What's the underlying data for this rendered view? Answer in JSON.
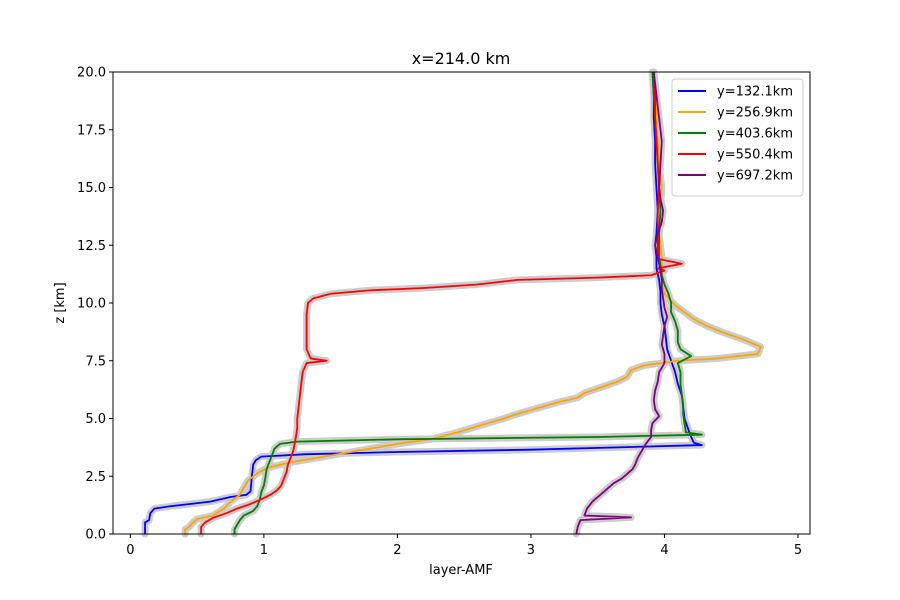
{
  "chart_data": {
    "type": "line",
    "title": "x=214.0 km",
    "xlabel": "layer-AMF",
    "ylabel": "z [km]",
    "xlim": [
      -0.13,
      5.09
    ],
    "ylim": [
      0,
      20
    ],
    "xticks": [
      0,
      1,
      2,
      3,
      4,
      5
    ],
    "xtick_labels": [
      "0",
      "1",
      "2",
      "3",
      "4",
      "5"
    ],
    "yticks": [
      0,
      2.5,
      5,
      7.5,
      10,
      12.5,
      15,
      17.5,
      20
    ],
    "ytick_labels": [
      "0.0",
      "2.5",
      "5.0",
      "7.5",
      "10.0",
      "12.5",
      "15.0",
      "17.5",
      "20.0"
    ],
    "grid": false,
    "legend_position": "top-right",
    "series": [
      {
        "name": "y=132.1km",
        "color": "#0000ff",
        "points": [
          [
            0.11,
            0.0
          ],
          [
            0.11,
            0.5
          ],
          [
            0.14,
            0.6
          ],
          [
            0.15,
            0.9
          ],
          [
            0.18,
            1.1
          ],
          [
            0.3,
            1.2
          ],
          [
            0.6,
            1.4
          ],
          [
            0.75,
            1.6
          ],
          [
            0.87,
            1.7
          ],
          [
            0.9,
            1.85
          ],
          [
            0.91,
            2.5
          ],
          [
            0.92,
            3.0
          ],
          [
            0.94,
            3.2
          ],
          [
            0.98,
            3.35
          ],
          [
            1.3,
            3.45
          ],
          [
            2.0,
            3.55
          ],
          [
            3.0,
            3.65
          ],
          [
            4.28,
            3.85
          ],
          [
            4.22,
            3.95
          ],
          [
            4.2,
            4.2
          ],
          [
            4.18,
            4.5
          ],
          [
            4.15,
            5.0
          ],
          [
            4.14,
            5.5
          ],
          [
            4.13,
            6.0
          ],
          [
            4.1,
            6.5
          ],
          [
            4.08,
            7.0
          ],
          [
            4.05,
            7.5
          ],
          [
            4.02,
            8.0
          ],
          [
            4.01,
            8.5
          ],
          [
            4.0,
            9.0
          ],
          [
            3.98,
            9.5
          ],
          [
            3.97,
            10.0
          ],
          [
            3.97,
            10.5
          ],
          [
            3.96,
            11.0
          ],
          [
            3.94,
            11.5
          ],
          [
            3.94,
            12.0
          ],
          [
            3.93,
            12.5
          ],
          [
            3.94,
            13.0
          ],
          [
            3.95,
            14.0
          ],
          [
            3.94,
            15.0
          ],
          [
            3.93,
            16.0
          ],
          [
            3.93,
            17.0
          ],
          [
            3.92,
            18.0
          ],
          [
            3.92,
            19.0
          ],
          [
            3.91,
            20.0
          ]
        ]
      },
      {
        "name": "y=256.9km",
        "color": "#ffa500",
        "points": [
          [
            0.41,
            0.0
          ],
          [
            0.41,
            0.2
          ],
          [
            0.44,
            0.3
          ],
          [
            0.47,
            0.5
          ],
          [
            0.5,
            0.65
          ],
          [
            0.62,
            0.8
          ],
          [
            0.7,
            1.1
          ],
          [
            0.75,
            1.4
          ],
          [
            0.82,
            1.7
          ],
          [
            0.85,
            2.0
          ],
          [
            0.88,
            2.3
          ],
          [
            0.92,
            2.5
          ],
          [
            0.97,
            2.7
          ],
          [
            1.05,
            2.9
          ],
          [
            1.2,
            3.1
          ],
          [
            1.4,
            3.3
          ],
          [
            1.7,
            3.6
          ],
          [
            2.0,
            3.9
          ],
          [
            2.25,
            4.1
          ],
          [
            2.45,
            4.4
          ],
          [
            2.62,
            4.7
          ],
          [
            2.8,
            5.0
          ],
          [
            2.9,
            5.2
          ],
          [
            3.05,
            5.45
          ],
          [
            3.2,
            5.7
          ],
          [
            3.35,
            5.9
          ],
          [
            3.4,
            6.1
          ],
          [
            3.55,
            6.4
          ],
          [
            3.65,
            6.6
          ],
          [
            3.72,
            6.8
          ],
          [
            3.75,
            7.1
          ],
          [
            3.85,
            7.3
          ],
          [
            4.1,
            7.5
          ],
          [
            4.4,
            7.6
          ],
          [
            4.7,
            7.8
          ],
          [
            4.72,
            8.1
          ],
          [
            4.6,
            8.4
          ],
          [
            4.45,
            8.7
          ],
          [
            4.32,
            9.0
          ],
          [
            4.22,
            9.3
          ],
          [
            4.15,
            9.6
          ],
          [
            4.08,
            9.9
          ],
          [
            4.0,
            10.4
          ],
          [
            3.98,
            10.8
          ],
          [
            3.98,
            11.3
          ],
          [
            3.98,
            12.0
          ],
          [
            3.96,
            13.0
          ],
          [
            3.97,
            14.0
          ],
          [
            3.98,
            15.0
          ],
          [
            3.96,
            16.0
          ],
          [
            3.95,
            17.0
          ],
          [
            3.94,
            18.0
          ],
          [
            3.93,
            19.0
          ],
          [
            3.92,
            20.0
          ]
        ]
      },
      {
        "name": "y=403.6km",
        "color": "#008000",
        "points": [
          [
            0.78,
            0.0
          ],
          [
            0.78,
            0.2
          ],
          [
            0.8,
            0.4
          ],
          [
            0.82,
            0.6
          ],
          [
            0.85,
            0.8
          ],
          [
            0.92,
            1.0
          ],
          [
            0.95,
            1.2
          ],
          [
            0.97,
            1.5
          ],
          [
            0.98,
            1.8
          ],
          [
            1.0,
            2.1
          ],
          [
            1.01,
            2.4
          ],
          [
            1.02,
            2.8
          ],
          [
            1.04,
            3.1
          ],
          [
            1.06,
            3.4
          ],
          [
            1.08,
            3.7
          ],
          [
            1.12,
            3.9
          ],
          [
            1.25,
            4.0
          ],
          [
            2.0,
            4.1
          ],
          [
            3.5,
            4.2
          ],
          [
            4.28,
            4.3
          ],
          [
            4.16,
            4.4
          ],
          [
            4.15,
            4.8
          ],
          [
            4.14,
            5.2
          ],
          [
            4.14,
            5.6
          ],
          [
            4.13,
            6.0
          ],
          [
            4.12,
            6.5
          ],
          [
            4.12,
            7.0
          ],
          [
            4.1,
            7.4
          ],
          [
            4.2,
            7.7
          ],
          [
            4.12,
            8.0
          ],
          [
            4.1,
            8.3
          ],
          [
            4.1,
            8.8
          ],
          [
            4.08,
            9.2
          ],
          [
            4.05,
            9.6
          ],
          [
            4.05,
            10.0
          ],
          [
            4.03,
            10.4
          ],
          [
            4.0,
            10.8
          ],
          [
            3.98,
            11.2
          ],
          [
            3.97,
            11.6
          ],
          [
            3.96,
            12.0
          ],
          [
            3.96,
            13.0
          ],
          [
            3.97,
            14.0
          ],
          [
            3.96,
            15.0
          ],
          [
            3.95,
            16.0
          ],
          [
            3.94,
            17.0
          ],
          [
            3.93,
            18.0
          ],
          [
            3.92,
            19.0
          ],
          [
            3.91,
            20.0
          ]
        ]
      },
      {
        "name": "y=550.4km",
        "color": "#ff0000",
        "points": [
          [
            0.53,
            0.0
          ],
          [
            0.53,
            0.3
          ],
          [
            0.56,
            0.5
          ],
          [
            0.62,
            0.7
          ],
          [
            0.72,
            0.9
          ],
          [
            0.8,
            1.1
          ],
          [
            0.9,
            1.3
          ],
          [
            0.98,
            1.5
          ],
          [
            1.05,
            1.7
          ],
          [
            1.1,
            1.9
          ],
          [
            1.13,
            2.1
          ],
          [
            1.15,
            2.4
          ],
          [
            1.17,
            2.7
          ],
          [
            1.18,
            3.0
          ],
          [
            1.2,
            3.3
          ],
          [
            1.22,
            3.6
          ],
          [
            1.23,
            3.9
          ],
          [
            1.24,
            4.2
          ],
          [
            1.25,
            4.6
          ],
          [
            1.25,
            5.0
          ],
          [
            1.26,
            5.5
          ],
          [
            1.27,
            6.0
          ],
          [
            1.28,
            6.5
          ],
          [
            1.29,
            7.0
          ],
          [
            1.32,
            7.4
          ],
          [
            1.47,
            7.5
          ],
          [
            1.35,
            7.6
          ],
          [
            1.32,
            8.0
          ],
          [
            1.32,
            8.5
          ],
          [
            1.32,
            9.0
          ],
          [
            1.32,
            9.5
          ],
          [
            1.33,
            10.0
          ],
          [
            1.37,
            10.2
          ],
          [
            1.5,
            10.4
          ],
          [
            1.8,
            10.55
          ],
          [
            2.2,
            10.65
          ],
          [
            2.6,
            10.8
          ],
          [
            2.9,
            11.0
          ],
          [
            3.5,
            11.1
          ],
          [
            3.9,
            11.2
          ],
          [
            4.0,
            11.4
          ],
          [
            3.95,
            11.5
          ],
          [
            4.13,
            11.7
          ],
          [
            3.96,
            11.9
          ],
          [
            3.95,
            12.3
          ],
          [
            3.95,
            13.0
          ],
          [
            3.95,
            14.0
          ],
          [
            3.96,
            15.0
          ],
          [
            3.95,
            16.0
          ],
          [
            3.94,
            17.0
          ],
          [
            3.93,
            18.0
          ],
          [
            3.93,
            19.0
          ],
          [
            3.92,
            20.0
          ]
        ]
      },
      {
        "name": "y=697.2km",
        "color": "#800080",
        "points": [
          [
            3.34,
            0.0
          ],
          [
            3.35,
            0.3
          ],
          [
            3.37,
            0.6
          ],
          [
            3.75,
            0.72
          ],
          [
            3.4,
            0.8
          ],
          [
            3.42,
            1.1
          ],
          [
            3.46,
            1.4
          ],
          [
            3.5,
            1.6
          ],
          [
            3.54,
            1.8
          ],
          [
            3.58,
            2.0
          ],
          [
            3.62,
            2.2
          ],
          [
            3.68,
            2.4
          ],
          [
            3.72,
            2.6
          ],
          [
            3.76,
            2.8
          ],
          [
            3.78,
            3.0
          ],
          [
            3.8,
            3.3
          ],
          [
            3.83,
            3.6
          ],
          [
            3.86,
            3.9
          ],
          [
            3.9,
            4.2
          ],
          [
            3.9,
            4.5
          ],
          [
            3.91,
            4.8
          ],
          [
            3.96,
            5.1
          ],
          [
            3.93,
            5.4
          ],
          [
            3.92,
            5.8
          ],
          [
            3.93,
            6.2
          ],
          [
            3.95,
            6.6
          ],
          [
            3.96,
            7.0
          ],
          [
            4.0,
            7.4
          ],
          [
            4.0,
            7.8
          ],
          [
            3.98,
            8.2
          ],
          [
            3.99,
            8.6
          ],
          [
            4.0,
            9.0
          ],
          [
            4.02,
            9.4
          ],
          [
            4.0,
            9.8
          ],
          [
            3.99,
            10.2
          ],
          [
            3.98,
            10.6
          ],
          [
            3.98,
            11.0
          ],
          [
            3.97,
            11.4
          ],
          [
            3.95,
            12.0
          ],
          [
            3.93,
            12.5
          ],
          [
            3.95,
            13.0
          ],
          [
            3.98,
            13.5
          ],
          [
            3.99,
            14.0
          ],
          [
            3.97,
            14.5
          ],
          [
            3.96,
            15.0
          ],
          [
            3.97,
            16.0
          ],
          [
            3.98,
            17.0
          ],
          [
            3.96,
            18.0
          ],
          [
            3.94,
            19.0
          ],
          [
            3.92,
            20.0
          ]
        ]
      }
    ]
  }
}
